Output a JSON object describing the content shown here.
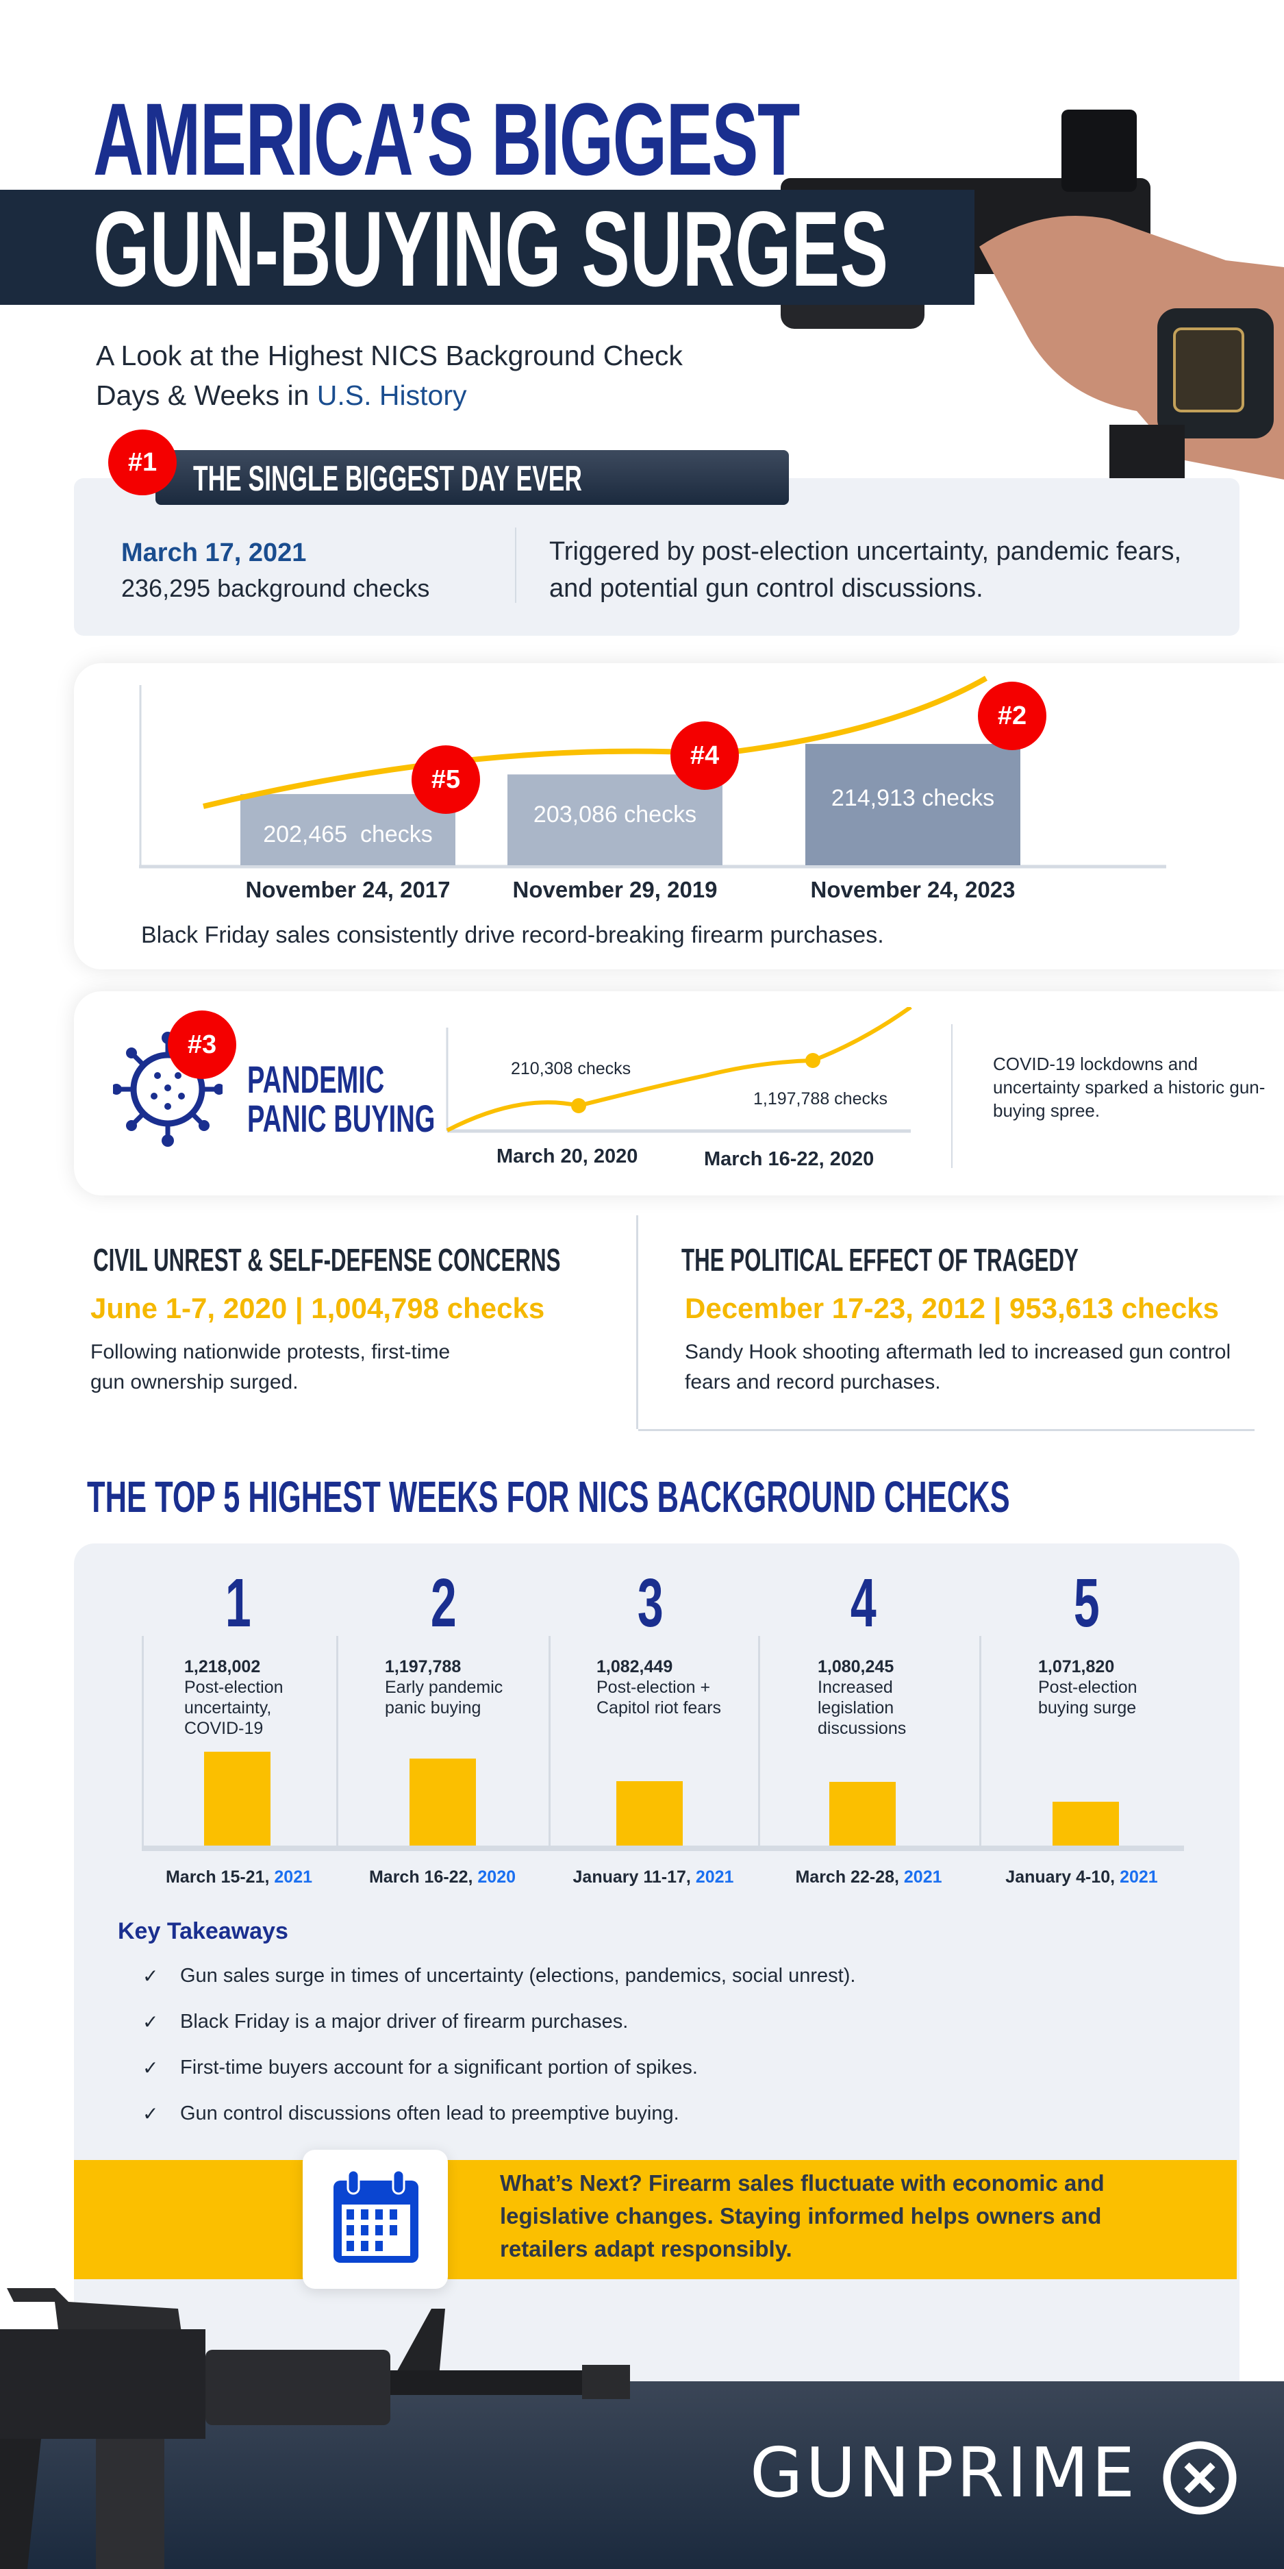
{
  "header": {
    "title_line1": "AMERICA’S BIGGEST",
    "title_line2": "GUN-BUYING SURGES",
    "subtitle_line1": "A Look at the Highest NICS Background Check",
    "subtitle_line2_prefix": "Days & Weeks in ",
    "subtitle_line2_highlight": "U.S. History"
  },
  "biggest_day": {
    "badge": "#1",
    "heading": "THE SINGLE BIGGEST DAY EVER",
    "date": "March 17, 2021",
    "checks": "236,295 background checks",
    "description": "Triggered by post-election uncertainty, pandemic fears, and potential gun control discussions."
  },
  "black_friday": {
    "bars": [
      {
        "label": "202,465  checks",
        "date": "November 24, 2017",
        "badge": "#5",
        "value": 202465
      },
      {
        "label": "203,086 checks",
        "date": "November 29, 2019",
        "badge": "#4",
        "value": 203086
      },
      {
        "label": "214,913 checks",
        "date": "November 24, 2023",
        "badge": "#2",
        "value": 214913
      }
    ],
    "caption": "Black Friday sales consistently drive record-breaking firearm purchases."
  },
  "pandemic": {
    "badge": "#3",
    "title_line1": "PANDEMIC",
    "title_line2": "PANIC BUYING",
    "point1_label": "210,308 checks",
    "point1_date": "March 20, 2020",
    "point2_label": "1,197,788 checks",
    "point2_date": "March 16-22, 2020",
    "description": "COVID-19 lockdowns and uncertainty sparked a historic gun-buying spree."
  },
  "civil_unrest": {
    "heading": "CIVIL UNREST & SELF-DEFENSE CONCERNS",
    "stat": "June 1-7, 2020 | 1,004,798 checks",
    "description": "Following nationwide protests, first-time gun ownership surged."
  },
  "tragedy": {
    "heading": "THE POLITICAL EFFECT OF TRAGEDY",
    "stat": "December 17-23, 2012 | 953,613 checks",
    "description": "Sandy Hook shooting aftermath led to increased gun control fears and record purchases."
  },
  "top5": {
    "heading": "THE TOP 5 HIGHEST WEEKS FOR NICS BACKGROUND CHECKS",
    "weeks": [
      {
        "rank": "1",
        "checks": "1,218,002",
        "reason": "Post-election uncertainty, COVID-19",
        "date": "March 15-21, ",
        "year": "2021"
      },
      {
        "rank": "2",
        "checks": "1,197,788",
        "reason": "Early pandemic panic buying",
        "date": "March 16-22, ",
        "year": "2020"
      },
      {
        "rank": "3",
        "checks": "1,082,449",
        "reason": "Post-election + Capitol riot fears",
        "date": "January 11-17, ",
        "year": "2021"
      },
      {
        "rank": "4",
        "checks": "1,080,245",
        "reason": "Increased legislation discussions",
        "date": "March 22-28, ",
        "year": "2021"
      },
      {
        "rank": "5",
        "checks": "1,071,820",
        "reason": "Post-election buying surge",
        "date": "January 4-10, ",
        "year": "2021"
      }
    ]
  },
  "chart_data": [
    {
      "type": "bar",
      "categories": [
        "November 24, 2017",
        "November 29, 2019",
        "November 24, 2023"
      ],
      "values": [
        202465,
        203086,
        214913
      ],
      "data_labels": [
        "202,465  checks",
        "203,086 checks",
        "214,913 checks"
      ],
      "colors": [
        "#aab6c8",
        "#aab6c8",
        "#8797b0"
      ],
      "trend_line_color": "#fbbf00"
    },
    {
      "type": "bar",
      "categories": [
        "March 15-21, 2021",
        "March 16-22, 2020",
        "January 11-17, 2021",
        "March 22-28, 2021",
        "January 4-10, 2021"
      ],
      "values": [
        1218002,
        1197788,
        1082449,
        1080245,
        1071820
      ],
      "color": "#fbbf00"
    }
  ],
  "takeaways": {
    "heading": "Key Takeaways",
    "items": [
      "Gun sales surge in times of uncertainty (elections, pandemics, social unrest).",
      "Black Friday is a major driver of firearm purchases.",
      "First-time buyers account for a significant portion of spikes.",
      "Gun control discussions often lead to preemptive buying."
    ],
    "check_glyph": "✓"
  },
  "whats_next": {
    "text": "What’s Next? Firearm sales fluctuate with economic and legislative changes. Staying informed helps owners and retailers adapt responsibly."
  },
  "footer": {
    "logo": "GUNPRIME"
  },
  "colors": {
    "navy": "#1a2f8f",
    "dark_band": "#1b2a3e",
    "red_badge": "#f40000",
    "yellow": "#fbbf00",
    "light_gray": "#eef1f6",
    "blue_year": "#1a6ff0"
  }
}
